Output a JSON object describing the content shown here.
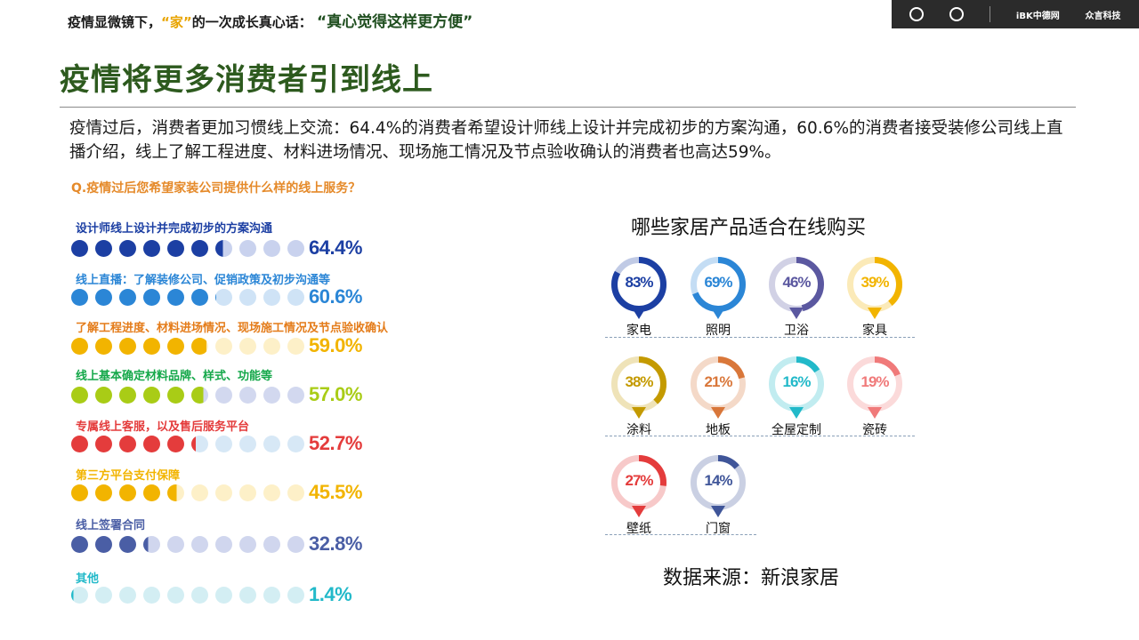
{
  "header": {
    "prefix": "疫情显微镜下，",
    "home_word": "“家”",
    "suffix": "的一次成长真心话：",
    "tagline": "“真心觉得这样更方便”",
    "logos": [
      "iBK中德网",
      "众言科技"
    ]
  },
  "title": "疫情将更多消费者引到线上",
  "intro": "疫情过后，消费者更加习惯线上交流：64.4%的消费者希望设计师线上设计并完成初步的方案沟通，60.6%的消费者接受装修公司线上直播介绍，线上了解工程进度、材料进场情况、现场施工情况及节点验收确认的消费者也高达59%。",
  "question": "Q.疫情过后您希望家装公司提供什么样的线上服务？",
  "survey_items": [
    {
      "label": "设计师线上设计并完成初步的方案沟通",
      "value": 64.4,
      "value_text": "64.4%",
      "color": "#1c3fa3",
      "light": "#c9d2ee",
      "label_color": "#1c3fa3"
    },
    {
      "label": "线上直播：了解装修公司、促销政策及初步沟通等",
      "value": 60.6,
      "value_text": "60.6%",
      "color": "#2b86d6",
      "light": "#cfe3f6",
      "label_color": "#2b86d6"
    },
    {
      "label": "了解工程进度、材料进场情况、现场施工情况及节点验收确认",
      "value": 59.0,
      "value_text": "59.0%",
      "color": "#f2b400",
      "light": "#fdf0c8",
      "label_color": "#e47c1a"
    },
    {
      "label": "线上基本确定材料品牌、样式、功能等",
      "value": 57.0,
      "value_text": "57.0%",
      "color": "#a9cc16",
      "light": "#d2d8ef",
      "label_color": "#15a84a"
    },
    {
      "label": "专属线上客服，以及售后服务平台",
      "value": 52.7,
      "value_text": "52.7%",
      "color": "#e43c3c",
      "light": "#d7e8f6",
      "label_color": "#e43c3c"
    },
    {
      "label": "第三方平台支付保障",
      "value": 45.5,
      "value_text": "45.5%",
      "color": "#f2b400",
      "light": "#fdf0c8",
      "label_color": "#f2b400"
    },
    {
      "label": "线上签署合同",
      "value": 32.8,
      "value_text": "32.8%",
      "color": "#4a5ea5",
      "light": "#d0d6ee",
      "label_color": "#4a5ea5"
    },
    {
      "label": "其他",
      "value": 1.4,
      "value_text": "1.4%",
      "color": "#22b9c9",
      "light": "#d3eef3",
      "label_color": "#22b9c9"
    }
  ],
  "products_title": "哪些家居产品适合在线购买",
  "products": [
    {
      "name": "家电",
      "value": 83,
      "value_text": "83%",
      "color": "#1c3fa3"
    },
    {
      "name": "照明",
      "value": 69,
      "value_text": "69%",
      "color": "#2b86d6"
    },
    {
      "name": "卫浴",
      "value": 46,
      "value_text": "46%",
      "color": "#5b58a0"
    },
    {
      "name": "家具",
      "value": 39,
      "value_text": "39%",
      "color": "#f2b400"
    },
    {
      "name": "涂料",
      "value": 38,
      "value_text": "38%",
      "color": "#c49a00"
    },
    {
      "name": "地板",
      "value": 21,
      "value_text": "21%",
      "color": "#d9773a"
    },
    {
      "name": "全屋定制",
      "value": 16,
      "value_text": "16%",
      "color": "#22b9c9"
    },
    {
      "name": "瓷砖",
      "value": 19,
      "value_text": "19%",
      "color": "#f07a7a"
    },
    {
      "name": "壁纸",
      "value": 27,
      "value_text": "27%",
      "color": "#e43c3c"
    },
    {
      "name": "门窗",
      "value": 14,
      "value_text": "14%",
      "color": "#3f5599"
    }
  ],
  "source": "数据来源：新浪家居"
}
